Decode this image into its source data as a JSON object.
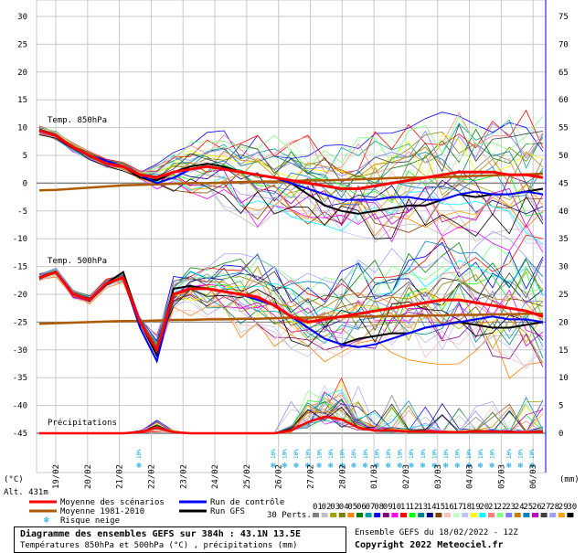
{
  "chart_data": {
    "type": "line",
    "left_axis_label": "(°C)",
    "right_axis_label": "(mm)",
    "altitude_label": "Alt. 431m",
    "left_ticks": [
      "30",
      "25",
      "20",
      "15",
      "10",
      "5",
      "0",
      "-5",
      "-10",
      "-15",
      "-20",
      "-25",
      "-30",
      "-35",
      "-40",
      "-45"
    ],
    "right_ticks": [
      "75",
      "70",
      "65",
      "60",
      "55",
      "50",
      "45",
      "40",
      "35",
      "30",
      "25",
      "20",
      "15",
      "10",
      "5",
      "0"
    ],
    "panel_labels": {
      "t850": "Temp. 850hPa",
      "t500": "Temp. 500hPa",
      "precip": "Précipitations"
    },
    "dates": [
      "19/02",
      "20/02",
      "21/02",
      "22/02",
      "23/02",
      "24/02",
      "25/02",
      "26/02",
      "27/02",
      "28/02",
      "01/03",
      "02/03",
      "03/03",
      "04/03",
      "05/03",
      "06/03"
    ],
    "snow_risk_label": "10%",
    "series": {
      "t850_mean": [
        9.5,
        8.5,
        6.5,
        5,
        3.5,
        3,
        1.5,
        1,
        2,
        2.5,
        3,
        2.5,
        2,
        1.5,
        1,
        0.5,
        0,
        -0.5,
        -1,
        -1,
        -0.5,
        0,
        0.5,
        1,
        1.5,
        2,
        2,
        2,
        1.5,
        1.5,
        1
      ],
      "t850_control": [
        9.5,
        8.5,
        6.5,
        5,
        4,
        3,
        1.5,
        0,
        1,
        2.5,
        3,
        2.5,
        2,
        1.5,
        1,
        0,
        -1,
        -2,
        -3,
        -3,
        -3,
        -2.5,
        -2.5,
        -3,
        -3,
        -2,
        -1.5,
        -2,
        -2,
        -1.5,
        -2
      ],
      "t850_gfs": [
        9.5,
        8.5,
        6.5,
        5,
        4,
        3,
        1,
        0.5,
        2,
        3,
        3.5,
        3,
        2,
        1.5,
        1,
        0,
        -2,
        -4,
        -5,
        -5.5,
        -5,
        -4.5,
        -4,
        -4,
        -3,
        -2,
        -2.5,
        -2,
        -2,
        -1.5,
        -1
      ],
      "t850_climo": [
        -1.3,
        -1.2,
        -1,
        -0.8,
        -0.6,
        -0.4,
        -0.3,
        -0.2,
        -0.1,
        0,
        0,
        0.1,
        0.2,
        0.3,
        0.3,
        0.4,
        0.5,
        0.5,
        0.6,
        0.7,
        0.8,
        0.9,
        1,
        1,
        1.1,
        1.2,
        1.3,
        1.4,
        1.5,
        1.6,
        1.7
      ],
      "t500_mean": [
        -17,
        -16,
        -20,
        -21,
        -18,
        -17,
        -25,
        -30,
        -20,
        -19,
        -19,
        -19.5,
        -20,
        -20.5,
        -22,
        -24,
        -25,
        -24.5,
        -24,
        -23.5,
        -23,
        -22.5,
        -22,
        -21.5,
        -21,
        -21,
        -21.5,
        -22,
        -22.5,
        -23,
        -24
      ],
      "t500_control": [
        -17,
        -16,
        -20,
        -21,
        -18,
        -17,
        -26,
        -32,
        -20,
        -19,
        -19,
        -19.5,
        -20,
        -21,
        -22,
        -24,
        -26,
        -28,
        -29,
        -29.5,
        -29,
        -28,
        -27,
        -26,
        -25.5,
        -25,
        -24.5,
        -24,
        -24.5,
        -24.5,
        -25
      ],
      "t500_gfs": [
        -17,
        -16,
        -20,
        -21,
        -18,
        -16,
        -25,
        -31,
        -19,
        -18.5,
        -19,
        -19.5,
        -20,
        -21,
        -22,
        -24,
        -26,
        -28,
        -29,
        -28,
        -27.5,
        -27,
        -27,
        -26,
        -25.5,
        -25,
        -25.5,
        -26,
        -26,
        -25.5,
        -25
      ],
      "t500_climo": [
        -25.3,
        -25.2,
        -25.1,
        -25,
        -24.9,
        -24.8,
        -24.8,
        -24.7,
        -24.6,
        -24.6,
        -24.5,
        -24.5,
        -24.4,
        -24.4,
        -24.3,
        -24.2,
        -24.2,
        -24.1,
        -24.1,
        -24,
        -24,
        -23.9,
        -23.9,
        -23.8,
        -23.8,
        -23.7,
        -23.7,
        -23.6,
        -23.6,
        -23.5,
        -23.5
      ],
      "precip_mean": [
        0,
        0,
        0,
        0,
        0,
        0,
        0.2,
        1,
        0.2,
        0,
        0,
        0,
        0,
        0,
        0,
        0.5,
        2,
        3,
        2.5,
        1,
        0.5,
        0.5,
        0.3,
        0.3,
        0.2,
        0.2,
        0.3,
        0.3,
        0.2,
        0.2,
        0.3
      ]
    },
    "legend": {
      "mean": "Moyenne des scénarios",
      "climo": "Moyenne 1981-2010",
      "snow": "Risque neige",
      "control": "Run de contrôle",
      "gfs": "Run GFS",
      "perts": "30 Perts."
    },
    "member_numbers": [
      "01",
      "02",
      "03",
      "04",
      "05",
      "06",
      "07",
      "08",
      "09",
      "10",
      "11",
      "12",
      "13",
      "14",
      "15",
      "16",
      "17",
      "18",
      "19",
      "20",
      "21",
      "22",
      "23",
      "24",
      "25",
      "26",
      "27",
      "28",
      "29",
      "30"
    ],
    "member_colors": [
      "#808080",
      "#c0c0c0",
      "#a0a000",
      "#808000",
      "#ff8000",
      "#008000",
      "#00a0a0",
      "#0000ff",
      "#800080",
      "#ff00ff",
      "#ff0000",
      "#00ff00",
      "#008080",
      "#000080",
      "#804000",
      "#ffc0c0",
      "#c0ffc0",
      "#c0c0ff",
      "#ffff00",
      "#00ffff",
      "#ff8080",
      "#80ff80",
      "#8080ff",
      "#c08000",
      "#0080c0",
      "#c000c0",
      "#404040",
      "#a0a0ff",
      "#ffa000",
      "#000000"
    ],
    "colors": {
      "mean": "#ff0000",
      "control": "#0000ff",
      "gfs": "#000000",
      "climo": "#b05a00",
      "snow": "#00a0e0",
      "grid": "#c8c8c8",
      "zero": "#808080"
    }
  },
  "footer": {
    "title": "Diagramme des ensembles GEFS sur 384h : 43.1N 13.5E",
    "subtitle": "Températures 850hPa et 500hPa (°C) , précipitations (mm)",
    "run": "Ensemble GEFS du 18/02/2022 - 12Z",
    "copyright": "Copyright 2022 Meteociel.fr"
  }
}
